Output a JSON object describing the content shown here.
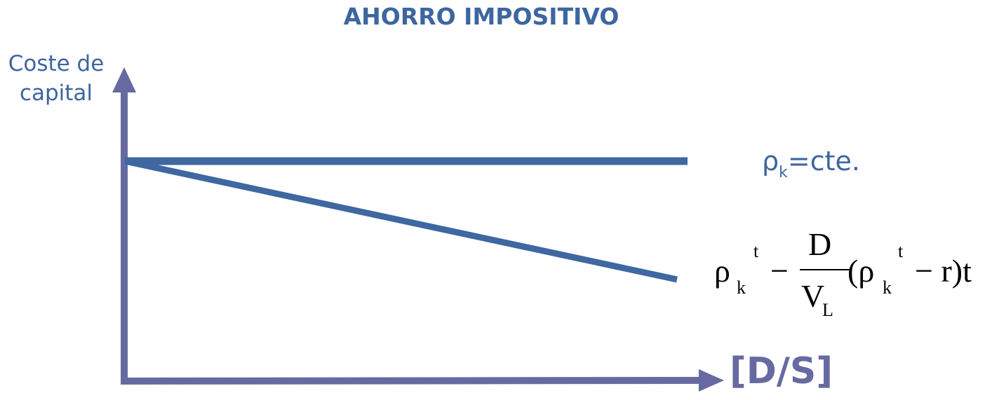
{
  "title": "AHORRO IMPOSITIVO",
  "y_axis": {
    "line1": "Coste de",
    "line2": "capital"
  },
  "x_axis": {
    "label": "[D/S]"
  },
  "lines": [
    {
      "name": "flat",
      "label_main": "ρ",
      "label_sub": "k",
      "label_rest": "=cte.",
      "color": "#3f67a1"
    },
    {
      "name": "declining",
      "color": "#3f67a1"
    }
  ],
  "formula": {
    "rho": "ρ",
    "sub_k": "k",
    "sup_t": "t",
    "minus": "−",
    "numerator": "D",
    "denominator": "V",
    "den_sub": "L",
    "open": "(ρ",
    "sub_k2": "k",
    "sup_t2": "t",
    "rest": "− r)t"
  },
  "colors": {
    "axis": "#676aa0",
    "text": "#3d66a0",
    "line": "#3f67a1"
  }
}
